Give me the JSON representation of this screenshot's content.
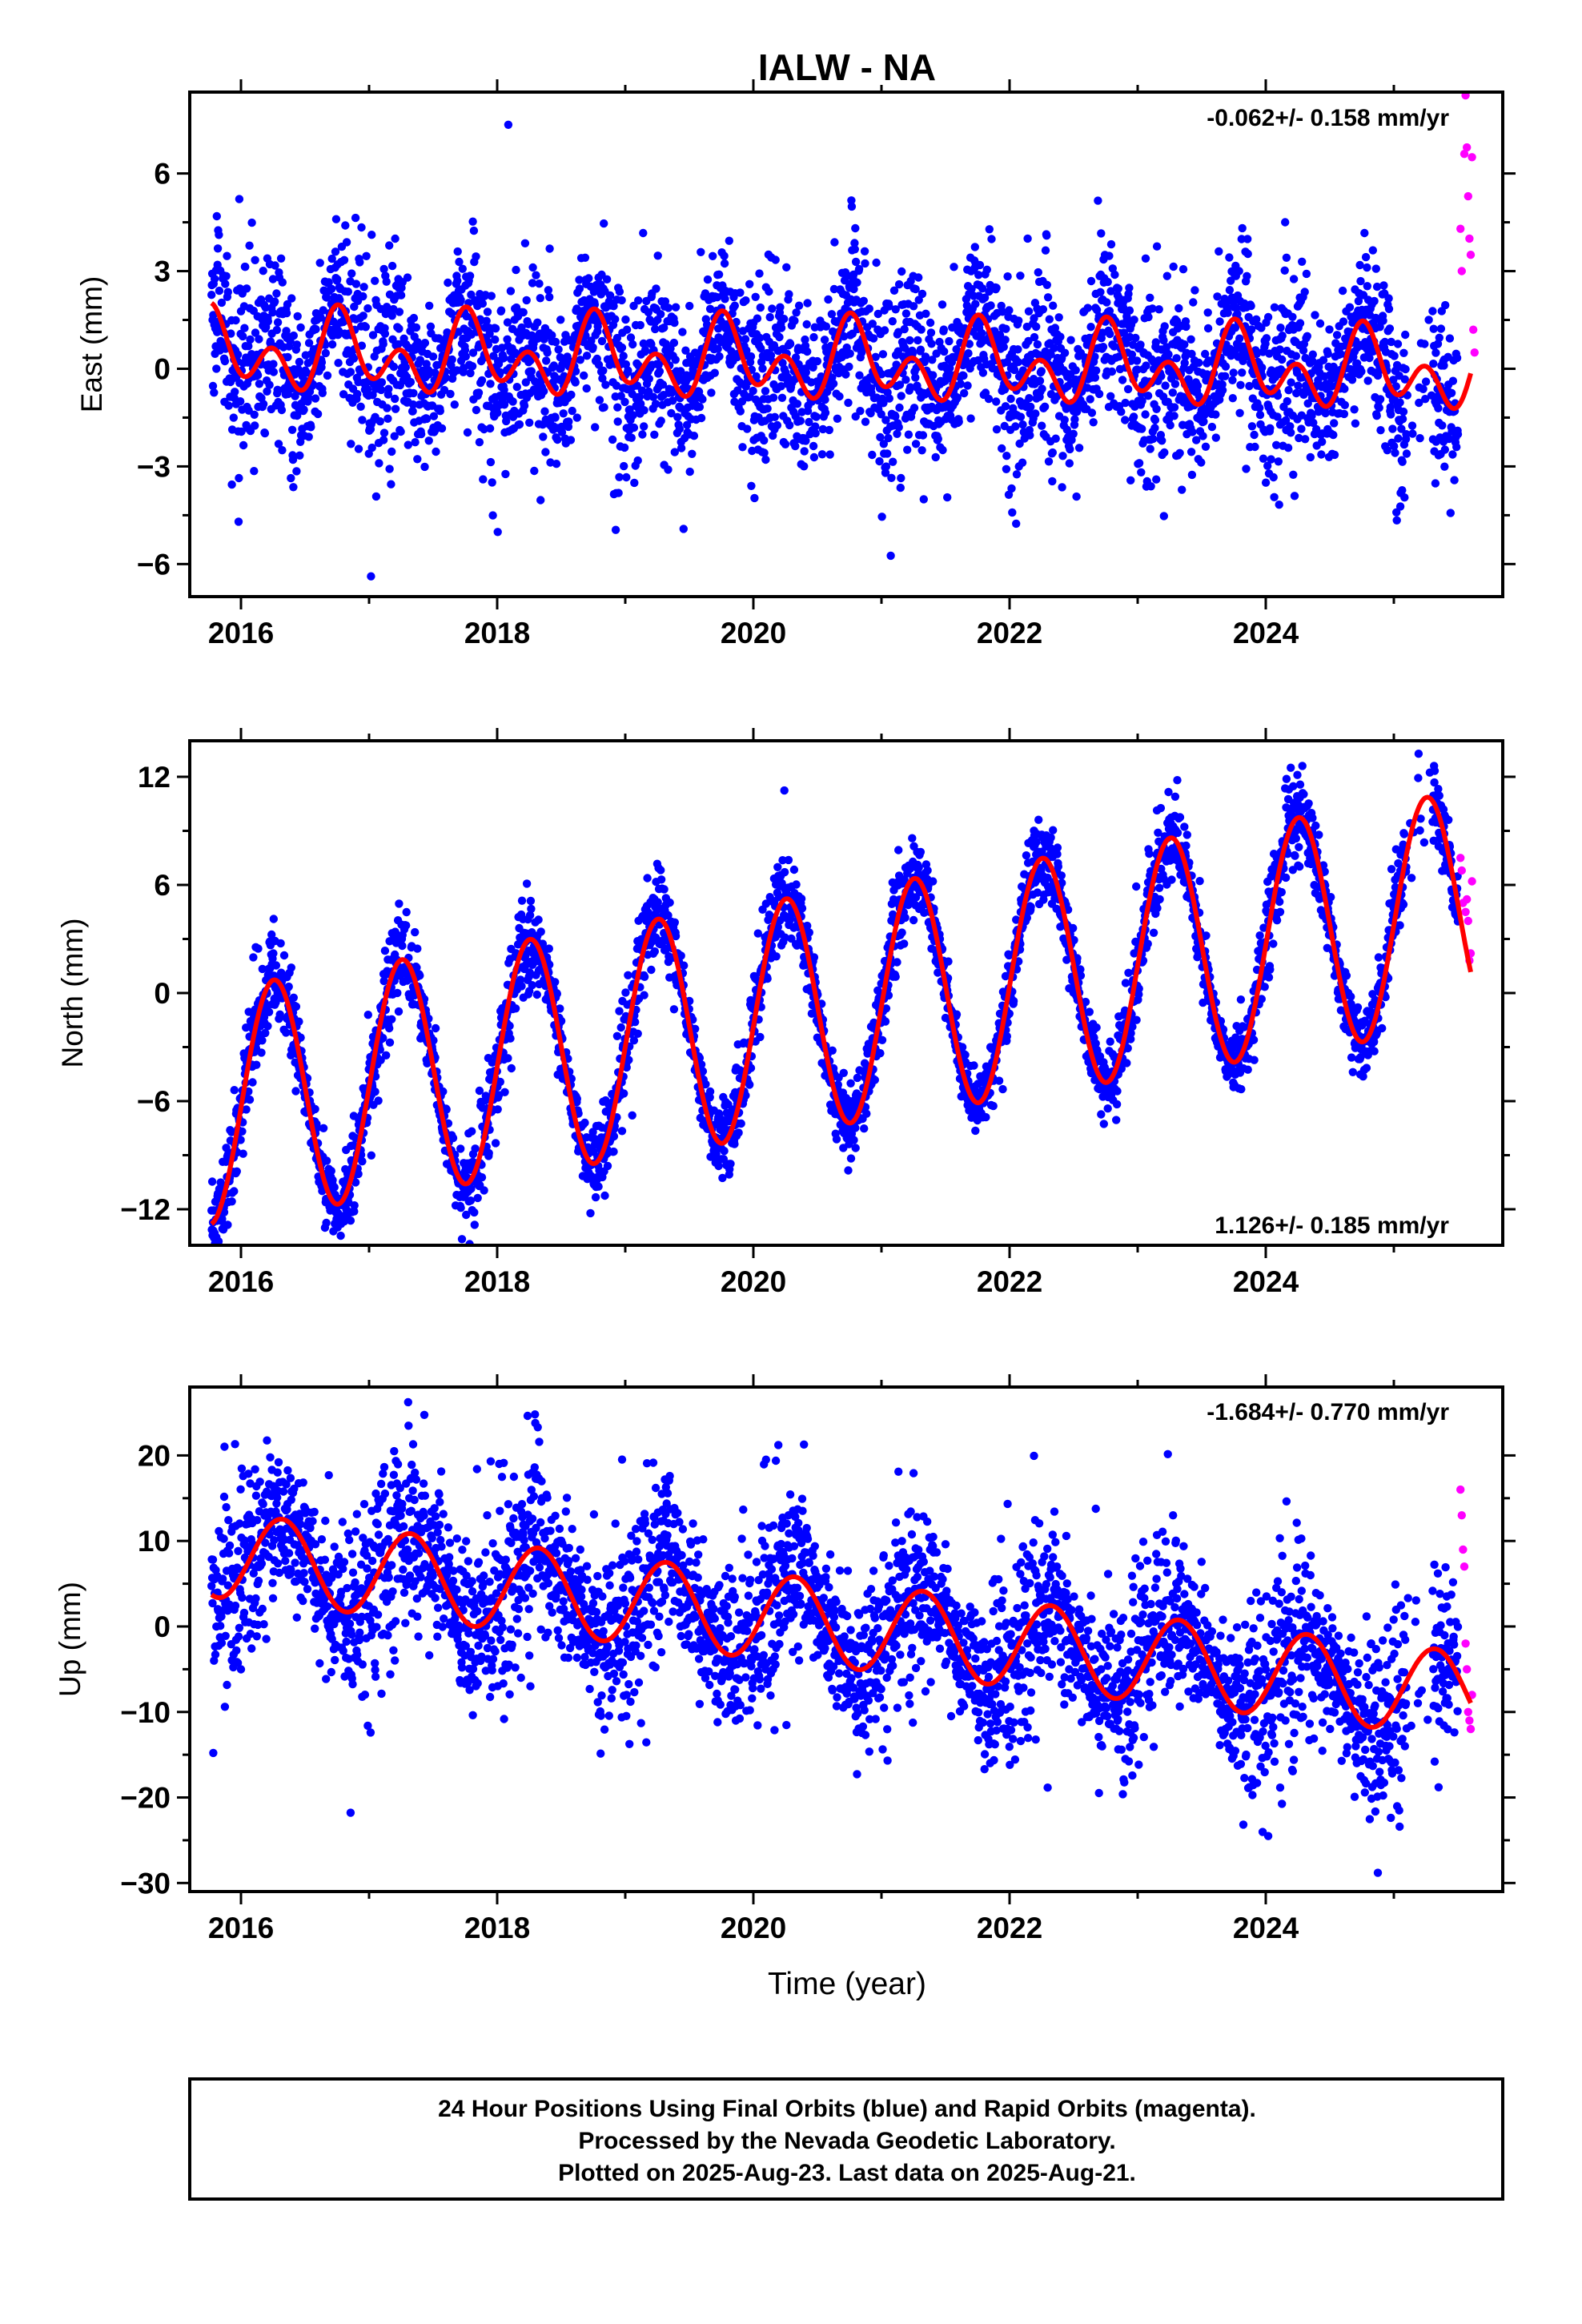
{
  "title": "IALW - NA",
  "colors": {
    "final_orbits": "#0000ff",
    "rapid_orbits": "#ff00ff",
    "model_fit": "#ff0000",
    "axes": "#000000",
    "background": "#ffffff"
  },
  "chart_data": [
    {
      "type": "scatter",
      "panel": "east",
      "title": "",
      "ylabel": "East (mm)",
      "xlabel": "",
      "xlim": [
        2015.6,
        2025.85
      ],
      "ylim": [
        -7,
        8.5
      ],
      "xticks": [
        2016,
        2018,
        2020,
        2022,
        2024
      ],
      "xtick_labels": [
        "2016",
        "2018",
        "2020",
        "2022",
        "2024"
      ],
      "yticks": [
        -6,
        -3,
        0,
        3,
        6
      ],
      "ytick_labels": [
        "−6",
        "−3",
        "0",
        "3",
        "6"
      ],
      "rate_text": "-0.062+/- 0.158 mm/yr",
      "rate_position": "top-right",
      "grid": false,
      "series": [
        {
          "name": "Final Orbits",
          "color": "#0000ff",
          "marker": "dot",
          "x_range": [
            2015.77,
            2025.5
          ],
          "spread": 1.3,
          "n_points": 3550
        },
        {
          "name": "Rapid Orbits",
          "color": "#ff00ff",
          "marker": "dot",
          "x": [
            2025.52,
            2025.53,
            2025.55,
            2025.56,
            2025.57,
            2025.58,
            2025.59,
            2025.6,
            2025.61,
            2025.62,
            2025.63
          ],
          "y": [
            4.3,
            3.0,
            6.6,
            8.4,
            6.8,
            5.3,
            4.0,
            3.5,
            6.5,
            1.2,
            0.5
          ]
        },
        {
          "name": "Model Fit",
          "color": "#ff0000",
          "marker": "line",
          "offset": 0.2,
          "slope": -0.062,
          "annual_cos": 0.2,
          "annual_sin": -0.68,
          "semiannual_cos": -0.85,
          "semiannual_sin": 0.0,
          "x_range": [
            2015.77,
            2025.6
          ]
        }
      ]
    },
    {
      "type": "scatter",
      "panel": "north",
      "title": "",
      "ylabel": "North (mm)",
      "xlabel": "",
      "xlim": [
        2015.6,
        2025.85
      ],
      "ylim": [
        -14,
        14
      ],
      "xticks": [
        2016,
        2018,
        2020,
        2022,
        2024
      ],
      "xtick_labels": [
        "2016",
        "2018",
        "2020",
        "2022",
        "2024"
      ],
      "yticks": [
        -12,
        -6,
        0,
        6,
        12
      ],
      "ytick_labels": [
        "−12",
        "−6",
        "0",
        "6",
        "12"
      ],
      "rate_text": "1.126+/- 0.185 mm/yr",
      "rate_position": "bottom-right",
      "grid": false,
      "series": [
        {
          "name": "Final Orbits",
          "color": "#0000ff",
          "marker": "dot",
          "x_range": [
            2015.77,
            2025.5
          ],
          "spread": 1.1,
          "n_points": 3550
        },
        {
          "name": "Rapid Orbits",
          "color": "#ff00ff",
          "marker": "dot",
          "x": [
            2025.52,
            2025.53,
            2025.54,
            2025.56,
            2025.57,
            2025.58,
            2025.59,
            2025.6,
            2025.61
          ],
          "y": [
            7.5,
            6.8,
            5.0,
            4.5,
            5.2,
            4.0,
            1.8,
            2.2,
            6.2
          ]
        },
        {
          "name": "Model Fit",
          "color": "#ff0000",
          "marker": "line",
          "offset": -1.0,
          "slope": 1.126,
          "annual_cos": -0.3,
          "annual_sin": 6.5,
          "semiannual_cos": 0.0,
          "semiannual_sin": 0.0,
          "x_range": [
            2015.77,
            2025.6
          ]
        }
      ]
    },
    {
      "type": "scatter",
      "panel": "up",
      "title": "",
      "ylabel": "Up (mm)",
      "xlabel": "Time (year)",
      "xlim": [
        2015.6,
        2025.85
      ],
      "ylim": [
        -31,
        28
      ],
      "xticks": [
        2016,
        2018,
        2020,
        2022,
        2024
      ],
      "xtick_labels": [
        "2016",
        "2018",
        "2020",
        "2022",
        "2024"
      ],
      "yticks": [
        -30,
        -20,
        -10,
        0,
        10,
        20
      ],
      "ytick_labels": [
        "−30",
        "−20",
        "−10",
        "0",
        "10",
        "20"
      ],
      "rate_text": "-1.684+/- 0.770 mm/yr",
      "rate_position": "top-right",
      "grid": false,
      "series": [
        {
          "name": "Final Orbits",
          "color": "#0000ff",
          "marker": "dot",
          "x_range": [
            2015.77,
            2025.5
          ],
          "spread": 5.0,
          "n_points": 3550
        },
        {
          "name": "Rapid Orbits",
          "color": "#ff00ff",
          "marker": "dot",
          "x": [
            2025.52,
            2025.53,
            2025.54,
            2025.55,
            2025.56,
            2025.57,
            2025.58,
            2025.59,
            2025.6,
            2025.61
          ],
          "y": [
            16,
            13,
            9,
            7,
            -2,
            -5,
            -10,
            -11,
            -12,
            -8
          ]
        },
        {
          "name": "Model Fit",
          "color": "#ff0000",
          "marker": "line",
          "offset": 0.5,
          "slope": -1.684,
          "annual_cos": -2.2,
          "annual_sin": 4.5,
          "semiannual_cos": 0.0,
          "semiannual_sin": 0.0,
          "x_range": [
            2015.77,
            2025.6
          ]
        }
      ]
    }
  ],
  "footer": {
    "line1": "24 Hour Positions Using Final Orbits (blue) and Rapid Orbits (magenta).",
    "line2": "Processed by the Nevada Geodetic Laboratory.",
    "line3": "Plotted on 2025-Aug-23. Last data on 2025-Aug-21."
  }
}
